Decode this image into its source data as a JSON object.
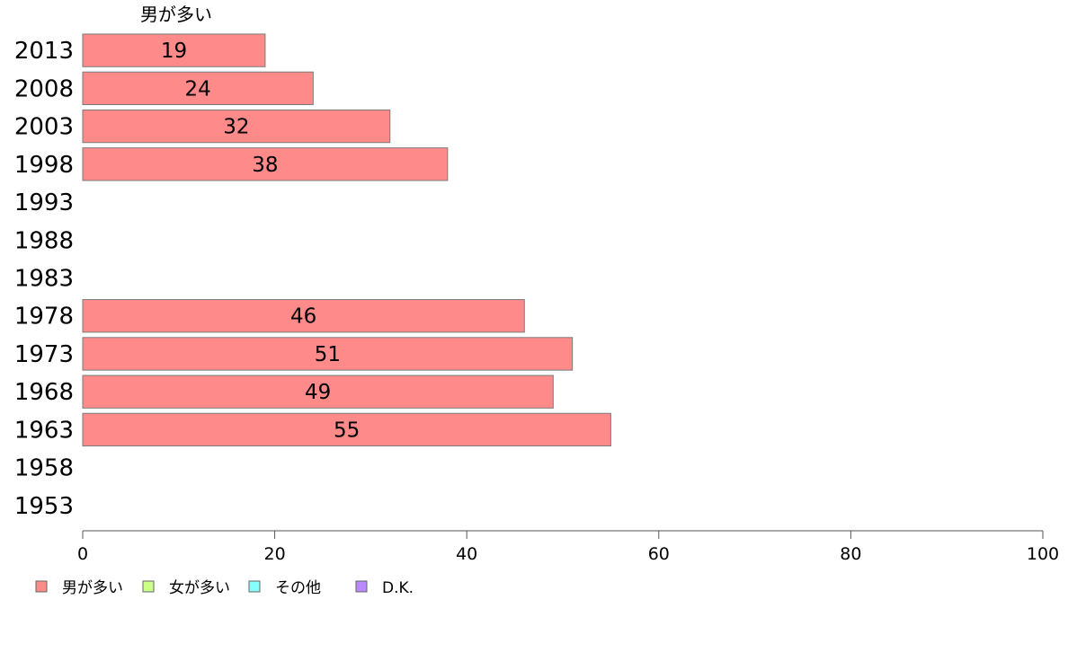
{
  "chart_data": {
    "type": "bar",
    "orientation": "horizontal",
    "stacked": true,
    "categories": [
      "2013",
      "2008",
      "2003",
      "1998",
      "1993",
      "1988",
      "1983",
      "1978",
      "1973",
      "1968",
      "1963",
      "1958",
      "1953"
    ],
    "series": [
      {
        "name": "男が多い",
        "color": "#ff8a8a",
        "values": [
          19,
          24,
          32,
          38,
          null,
          null,
          null,
          46,
          51,
          49,
          55,
          null,
          null
        ]
      },
      {
        "name": "女が多い",
        "color": "#ccff88",
        "values": [
          null,
          null,
          null,
          null,
          null,
          null,
          null,
          null,
          null,
          null,
          null,
          null,
          null
        ]
      },
      {
        "name": "その他",
        "color": "#88ffff",
        "values": [
          null,
          null,
          null,
          null,
          null,
          null,
          null,
          null,
          null,
          null,
          null,
          null,
          null
        ]
      },
      {
        "name": "D.K.",
        "color": "#bb88ff",
        "values": [
          null,
          null,
          null,
          null,
          null,
          null,
          null,
          null,
          null,
          null,
          null,
          null,
          null
        ]
      }
    ],
    "xlim": [
      0,
      100
    ],
    "xticks": [
      0,
      20,
      40,
      60,
      80,
      100
    ],
    "top_label": "男が多い",
    "grid": false,
    "legend_position": "bottom-left"
  }
}
